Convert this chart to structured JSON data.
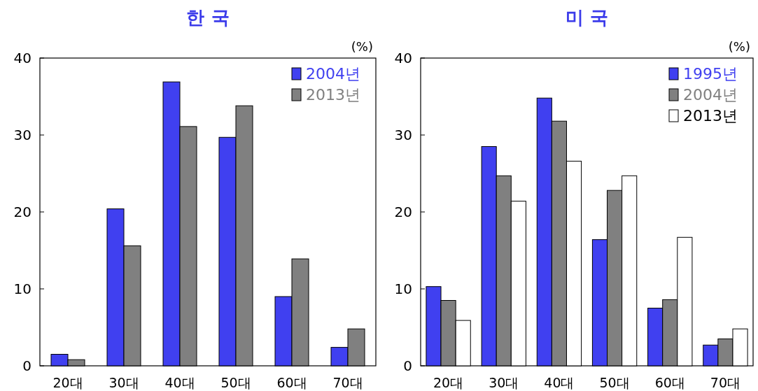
{
  "chart_data": [
    {
      "type": "bar",
      "title": "한 국",
      "annotations": [
        "(%)"
      ],
      "categories": [
        "20대",
        "30대",
        "40대",
        "50대",
        "60대",
        "70대"
      ],
      "ylim": [
        0,
        40
      ],
      "yticks": [
        0,
        10,
        20,
        30,
        40
      ],
      "legend": "top right",
      "series": [
        {
          "name": "2004년",
          "color": "#4040f0",
          "values": [
            1.5,
            20.4,
            36.9,
            29.7,
            9.0,
            2.4
          ]
        },
        {
          "name": "2013년",
          "color": "#808080",
          "values": [
            0.8,
            15.6,
            31.1,
            33.8,
            13.9,
            4.8
          ]
        }
      ]
    },
    {
      "type": "bar",
      "title": "미 국",
      "annotations": [
        "(%)"
      ],
      "categories": [
        "20대",
        "30대",
        "40대",
        "50대",
        "60대",
        "70대"
      ],
      "ylim": [
        0,
        40
      ],
      "yticks": [
        0,
        10,
        20,
        30,
        40
      ],
      "legend": "top right",
      "series": [
        {
          "name": "1995년",
          "color": "#4040f0",
          "values": [
            10.3,
            28.5,
            34.8,
            16.4,
            7.5,
            2.7
          ]
        },
        {
          "name": "2004년",
          "color": "#808080",
          "values": [
            8.5,
            24.7,
            31.8,
            22.8,
            8.6,
            3.5
          ]
        },
        {
          "name": "2013년",
          "color": "#ffffff",
          "values": [
            5.9,
            21.4,
            26.6,
            24.7,
            16.7,
            4.8
          ]
        }
      ]
    }
  ]
}
